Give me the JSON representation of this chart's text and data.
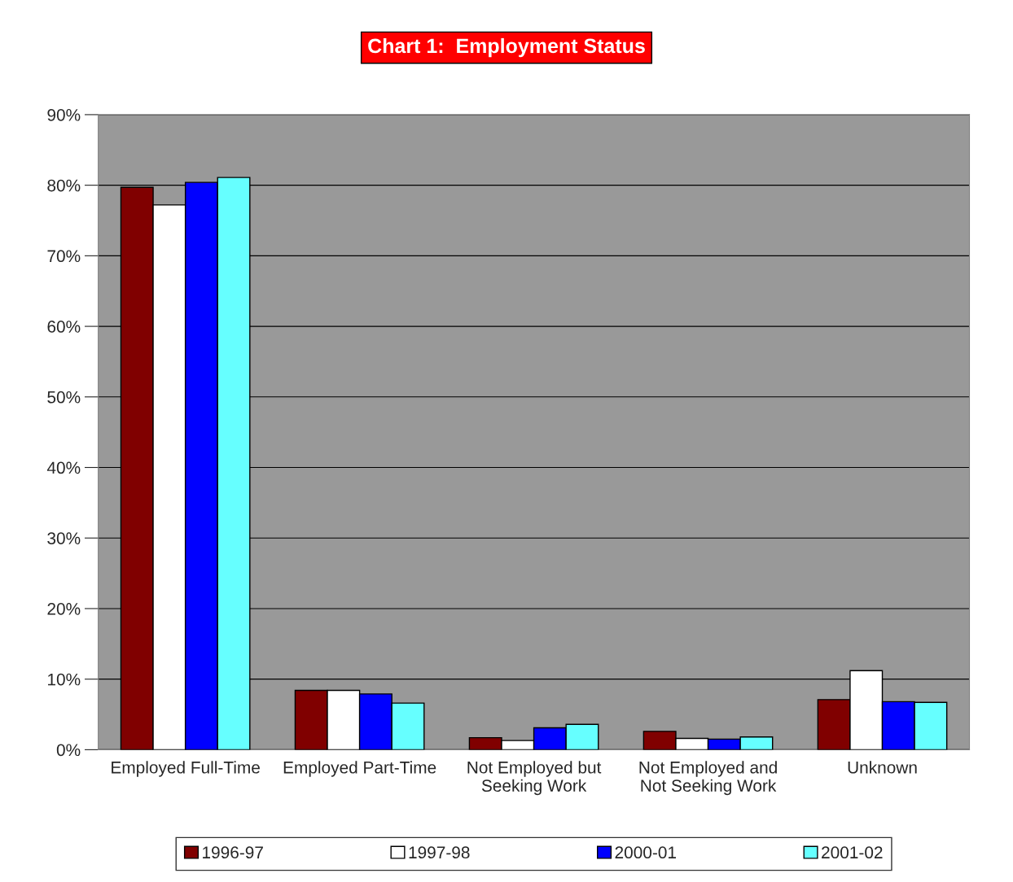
{
  "chart_data": {
    "type": "bar",
    "title": "Chart 1:  Employment Status",
    "categories": [
      "Employed Full-Time",
      "Employed Part-Time",
      "Not Employed but\nSeeking Work",
      "Not Employed and\nNot Seeking Work",
      "Unknown"
    ],
    "series": [
      {
        "name": "1996-97",
        "color": "#800000",
        "values": [
          79.7,
          8.4,
          1.7,
          2.6,
          7.1
        ]
      },
      {
        "name": "1997-98",
        "color": "#ffffff",
        "values": [
          77.2,
          8.4,
          1.3,
          1.6,
          11.2
        ]
      },
      {
        "name": "2000-01",
        "color": "#0000ff",
        "values": [
          80.4,
          7.9,
          3.1,
          1.5,
          6.8
        ]
      },
      {
        "name": "2001-02",
        "color": "#66ffff",
        "values": [
          81.1,
          6.6,
          3.6,
          1.8,
          6.7
        ]
      }
    ],
    "ylim": [
      0,
      90
    ],
    "yticks": [
      {
        "value": 0,
        "label": "0%"
      },
      {
        "value": 10,
        "label": "10%"
      },
      {
        "value": 20,
        "label": "20%"
      },
      {
        "value": 30,
        "label": "30%"
      },
      {
        "value": 40,
        "label": "40%"
      },
      {
        "value": 50,
        "label": "50%"
      },
      {
        "value": 60,
        "label": "60%"
      },
      {
        "value": 70,
        "label": "70%"
      },
      {
        "value": 80,
        "label": "80%"
      },
      {
        "value": 90,
        "label": "90%"
      }
    ],
    "grid": "y",
    "legend": "bottom"
  }
}
